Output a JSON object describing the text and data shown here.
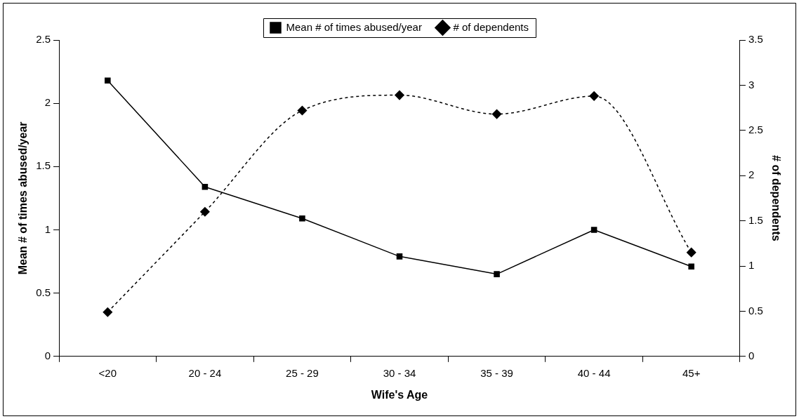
{
  "chart_data": {
    "type": "line",
    "xlabel": "Wife's Age",
    "ylabel": "Mean # of times abused/year",
    "y2label": "# of dependents",
    "categories": [
      "<20",
      "20 - 24",
      "25 - 29",
      "30 - 34",
      "35 - 39",
      "40 - 44",
      "45+"
    ],
    "series": [
      {
        "name": "Mean # of times abused/year",
        "color": "#000000",
        "marker": "square",
        "line_style": "solid",
        "values": [
          2.18,
          1.34,
          1.09,
          0.79,
          0.65,
          1.0,
          0.71
        ]
      },
      {
        "name": "# of dependents",
        "color": "#000000",
        "marker": "diamond",
        "line_style": "dashed",
        "axis": "y2",
        "values": [
          0.49,
          1.6,
          2.72,
          2.89,
          2.68,
          2.88,
          1.15
        ]
      }
    ],
    "ylim": [
      0,
      2.5
    ],
    "yticks": [
      0,
      0.5,
      1,
      1.5,
      2,
      2.5
    ],
    "y2lim": [
      0,
      3.5
    ],
    "y2ticks": [
      0,
      0.5,
      1,
      1.5,
      2,
      2.5,
      3,
      3.5
    ],
    "grid": false,
    "legend": "top"
  }
}
